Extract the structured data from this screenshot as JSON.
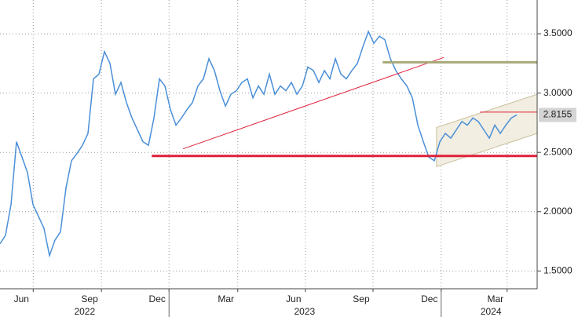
{
  "chart_data": {
    "type": "line",
    "x": [
      0,
      1,
      2,
      3,
      4,
      5,
      6,
      7,
      8,
      9,
      10,
      11,
      12,
      13,
      14,
      15,
      16,
      17,
      18,
      19,
      20,
      21,
      22,
      23,
      24,
      25,
      26,
      27,
      28,
      29,
      30,
      31,
      32,
      33,
      34,
      35,
      36,
      37,
      38,
      39,
      40,
      41,
      42,
      43,
      44,
      45,
      46,
      47,
      48,
      49,
      50,
      51,
      52,
      53,
      54,
      55,
      56,
      57,
      58,
      59,
      60,
      61,
      62,
      63,
      64,
      65,
      66,
      67,
      68,
      69,
      70,
      71,
      72,
      73,
      74,
      75,
      76,
      77,
      78,
      79,
      80,
      81,
      82,
      83,
      84,
      85,
      86,
      87,
      88,
      89,
      90,
      91,
      92,
      93,
      94
    ],
    "series": [
      {
        "color": "#4a8fd8",
        "values": [
          1.73,
          1.8,
          2.06,
          2.59,
          2.46,
          2.33,
          2.06,
          1.96,
          1.86,
          1.63,
          1.76,
          1.83,
          2.2,
          2.43,
          2.49,
          2.56,
          2.66,
          3.12,
          3.16,
          3.35,
          3.25,
          2.99,
          3.09,
          2.92,
          2.79,
          2.69,
          2.59,
          2.56,
          2.79,
          3.12,
          3.06,
          2.86,
          2.73,
          2.79,
          2.86,
          2.92,
          3.06,
          3.12,
          3.29,
          3.19,
          3.02,
          2.89,
          2.99,
          3.02,
          3.09,
          3.12,
          2.96,
          3.06,
          2.99,
          3.16,
          2.99,
          3.06,
          3.02,
          3.09,
          2.99,
          3.06,
          3.22,
          3.19,
          3.09,
          3.19,
          3.12,
          3.29,
          3.16,
          3.12,
          3.19,
          3.25,
          3.39,
          3.52,
          3.42,
          3.48,
          3.45,
          3.29,
          3.19,
          3.12,
          3.06,
          2.96,
          2.73,
          2.59,
          2.46,
          2.43,
          2.59,
          2.66,
          2.62,
          2.69,
          2.76,
          2.73,
          2.79,
          2.76,
          2.69,
          2.62,
          2.73,
          2.66,
          2.73,
          2.79,
          2.8155
        ]
      }
    ],
    "xlim": [
      0,
      97.7
    ],
    "ylim": [
      1.35,
      3.785
    ],
    "yticks": [
      {
        "value": 1.5,
        "label": "1.5000"
      },
      {
        "value": 2,
        "label": "2.0000"
      },
      {
        "value": 2.5,
        "label": "2.5000"
      },
      {
        "value": 3,
        "label": "3.0000"
      },
      {
        "value": 3.5,
        "label": "3.5000"
      }
    ],
    "xticks": [
      {
        "value": 3.9,
        "label": "Jun"
      },
      {
        "value": 16.3,
        "label": "Sep"
      },
      {
        "value": 28.6,
        "label": "Dec"
      },
      {
        "value": 41.1,
        "label": "Mar"
      },
      {
        "value": 53.4,
        "label": "Jun"
      },
      {
        "value": 65.7,
        "label": "Sep"
      },
      {
        "value": 78.1,
        "label": "Dec"
      },
      {
        "value": 90.1,
        "label": "Mar"
      }
    ],
    "x_groups": [
      {
        "value": 15.4,
        "label": "2022"
      },
      {
        "value": 55.4,
        "label": "2023"
      },
      {
        "value": 89.3,
        "label": "2024"
      }
    ],
    "grid": true,
    "hlines": [
      {
        "value": 2.47,
        "x_start": 27.6,
        "color": "#e0203a",
        "width": 3
      },
      {
        "value": 3.26,
        "x_start": 69.6,
        "color": "#a8a878",
        "width": 3
      },
      {
        "value": 2.84,
        "x_start": 87.3,
        "color": "#e0203a",
        "width": 1
      }
    ],
    "trendlines": [
      {
        "x": [
          33.3,
          80.7
        ],
        "y": [
          2.53,
          3.3
        ],
        "color": "#e0203a"
      }
    ],
    "channel": {
      "x": [
        79.4,
        97.7
      ],
      "upper": [
        2.71,
        2.99
      ],
      "lower": [
        2.38,
        2.66
      ]
    }
  }
}
